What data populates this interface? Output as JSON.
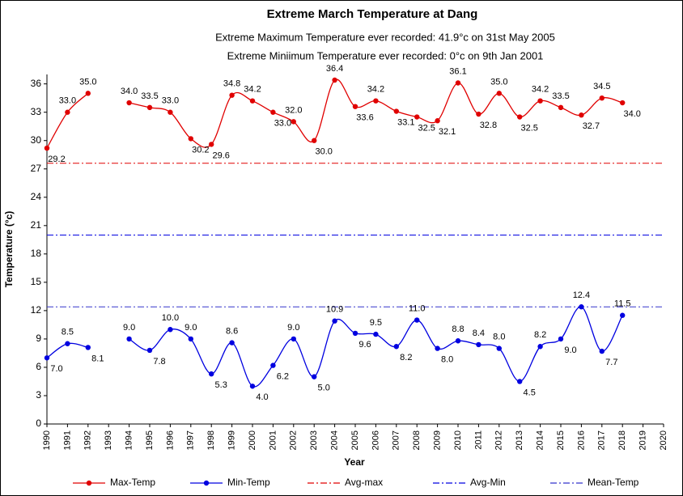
{
  "chart_data": {
    "type": "line",
    "title": "Extreme  March Temperature at Dang",
    "subtitles": [
      "Extreme Maximum Temperature ever recorded: 41.9°c on 31st May 2005",
      "Extreme Miniimum Temperature ever recorded:  0°c on   9th Jan 2001"
    ],
    "xlabel": "Year",
    "ylabel": "Temperature (°c)",
    "x": [
      1990,
      1991,
      1992,
      1993,
      1994,
      1995,
      1996,
      1997,
      1998,
      1999,
      2000,
      2001,
      2002,
      2003,
      2004,
      2005,
      2006,
      2007,
      2008,
      2009,
      2010,
      2011,
      2012,
      2013,
      2014,
      2015,
      2016,
      2017,
      2018
    ],
    "series": [
      {
        "name": "Max-Temp",
        "color": "#e00000",
        "values": [
          29.2,
          33.0,
          35.0,
          null,
          34.0,
          33.5,
          33.0,
          30.2,
          29.6,
          34.8,
          34.2,
          33.0,
          32.0,
          30.0,
          36.4,
          33.6,
          34.2,
          33.1,
          32.5,
          32.1,
          36.1,
          32.8,
          35.0,
          32.5,
          34.2,
          33.5,
          32.7,
          34.5,
          34.0
        ],
        "value_labels": [
          "29.2",
          "33.0",
          "35.0",
          null,
          "34.0",
          "33.5",
          "33.0",
          "30.2",
          "29.6",
          "34.8",
          "34.2",
          "33.0",
          "32.0",
          "30.0",
          "36.4",
          "33.6",
          "34.2",
          "33.1",
          "32.5",
          "32.1",
          "36.1",
          "32.8",
          "35.0",
          "32.5",
          "34.2",
          "33.5",
          "32.7",
          "34.5",
          "34.0"
        ]
      },
      {
        "name": "Min-Temp",
        "color": "#0000e0",
        "values": [
          7.0,
          8.5,
          8.1,
          null,
          9.0,
          7.8,
          10.0,
          9.0,
          5.3,
          8.6,
          4.0,
          6.2,
          9.0,
          5.0,
          10.9,
          9.6,
          9.5,
          8.2,
          11.0,
          8.0,
          8.8,
          8.4,
          8.0,
          4.5,
          8.2,
          9.0,
          12.4,
          7.7,
          11.5
        ],
        "value_labels": [
          "7.0",
          "8.5",
          "8.1",
          null,
          "9.0",
          "7.8",
          "10.0",
          "9.0",
          "5.3",
          "8.6",
          "4.0",
          "6.2",
          "9.0",
          "5.0",
          "10.9",
          "9.6",
          "9.5",
          "8.2",
          "11.0",
          "8.0",
          "8.8",
          "8.4",
          "8.0",
          "4.5",
          "8.2",
          "9.0",
          "12.4",
          "7.7",
          "11.5"
        ]
      }
    ],
    "reference_lines": [
      {
        "name": "Avg-max",
        "value": 27.6,
        "color": "#e00000"
      },
      {
        "name": "Avg-Min",
        "value": 20.0,
        "color": "#0000e0"
      },
      {
        "name": "Mean-Temp",
        "value": 12.4,
        "color": "#3333cc"
      }
    ],
    "xlim": [
      1990,
      2020
    ],
    "xticks": [
      1990,
      1991,
      1992,
      1993,
      1994,
      1995,
      1996,
      1997,
      1998,
      1999,
      2000,
      2001,
      2002,
      2003,
      2004,
      2005,
      2006,
      2007,
      2008,
      2009,
      2010,
      2011,
      2012,
      2013,
      2014,
      2015,
      2016,
      2017,
      2018,
      2019,
      2020
    ],
    "ylim": [
      0,
      37
    ],
    "yticks": [
      0,
      3,
      6,
      9,
      12,
      15,
      18,
      21,
      24,
      27,
      30,
      33,
      36
    ],
    "legend": "bottom"
  }
}
